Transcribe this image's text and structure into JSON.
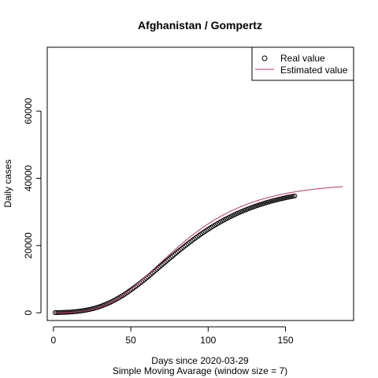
{
  "chart_data": {
    "type": "scatter",
    "title": "Afghanistan / Gompertz",
    "xlabel": "Days since 2020-03-29",
    "xlabel2": "Simple Moving Avarage (window size = 7)",
    "ylabel": "Daily cases",
    "xlim": [
      -4,
      194
    ],
    "ylim": [
      -2300,
      79000
    ],
    "x_ticks": [
      0,
      50,
      100,
      150
    ],
    "x_tick_labels": [
      "0",
      "50",
      "100",
      "150"
    ],
    "y_ticks": [
      0,
      20000,
      40000,
      60000
    ],
    "y_tick_labels": [
      "0",
      "20000",
      "40000",
      "60000"
    ],
    "grid": false,
    "legend_position": "top-right",
    "series": [
      {
        "name": "Real value",
        "kind": "points",
        "color": "#000000",
        "x_start": 1,
        "x_end": 156,
        "x_step": 1,
        "model": {
          "a": 38000,
          "b": 7.0,
          "c": 0.028
        }
      },
      {
        "name": "Estimated value",
        "kind": "line",
        "color": "#c0306a",
        "x_start": 1,
        "x_end": 187,
        "x_step": 1,
        "model": {
          "a": 38600,
          "b": 7.6,
          "c": 0.03
        }
      }
    ]
  }
}
